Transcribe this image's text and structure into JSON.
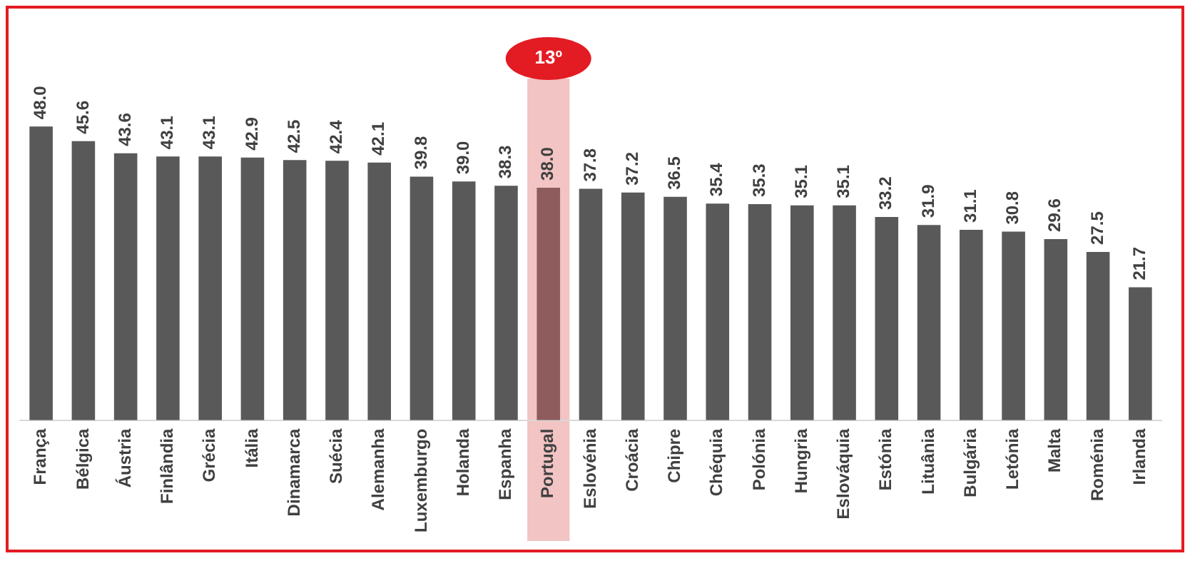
{
  "chart_data": {
    "type": "bar",
    "categories": [
      "França",
      "Bélgica",
      "Áustria",
      "Finlândia",
      "Grécia",
      "Itália",
      "Dinamarca",
      "Suécia",
      "Alemanha",
      "Luxemburgo",
      "Holanda",
      "Espanha",
      "Portugal",
      "Eslovénia",
      "Croácia",
      "Chipre",
      "Chéquia",
      "Polónia",
      "Hungria",
      "Eslováquia",
      "Estónia",
      "Lituânia",
      "Bulgária",
      "Letónia",
      "Malta",
      "Roménia",
      "Irlanda"
    ],
    "values": [
      48.0,
      45.6,
      43.6,
      43.1,
      43.1,
      42.9,
      42.5,
      42.4,
      42.1,
      39.8,
      39.0,
      38.3,
      38.0,
      37.8,
      37.2,
      36.5,
      35.4,
      35.3,
      35.1,
      35.1,
      33.2,
      31.9,
      31.1,
      30.8,
      29.6,
      27.5,
      21.7
    ],
    "value_labels": [
      "48.0",
      "45.6",
      "43.6",
      "43.1",
      "43.1",
      "42.9",
      "42.5",
      "42.4",
      "42.1",
      "39.8",
      "39.0",
      "38.3",
      "38.0",
      "37.8",
      "37.2",
      "36.5",
      "35.4",
      "35.3",
      "35.1",
      "35.1",
      "33.2",
      "31.9",
      "31.1",
      "30.8",
      "29.6",
      "27.5",
      "21.7"
    ],
    "colors": [
      "#595959",
      "#595959",
      "#595959",
      "#595959",
      "#595959",
      "#595959",
      "#595959",
      "#595959",
      "#595959",
      "#595959",
      "#595959",
      "#595959",
      "#8e5c5c",
      "#595959",
      "#595959",
      "#595959",
      "#595959",
      "#595959",
      "#595959",
      "#595959",
      "#595959",
      "#595959",
      "#595959",
      "#595959",
      "#595959",
      "#595959",
      "#595959"
    ],
    "bands": [
      {
        "axis": "x",
        "from": "Portugal",
        "to": "Portugal",
        "label": "13º",
        "color": "#f2c4c4"
      }
    ],
    "grid": false,
    "legend": false
  }
}
